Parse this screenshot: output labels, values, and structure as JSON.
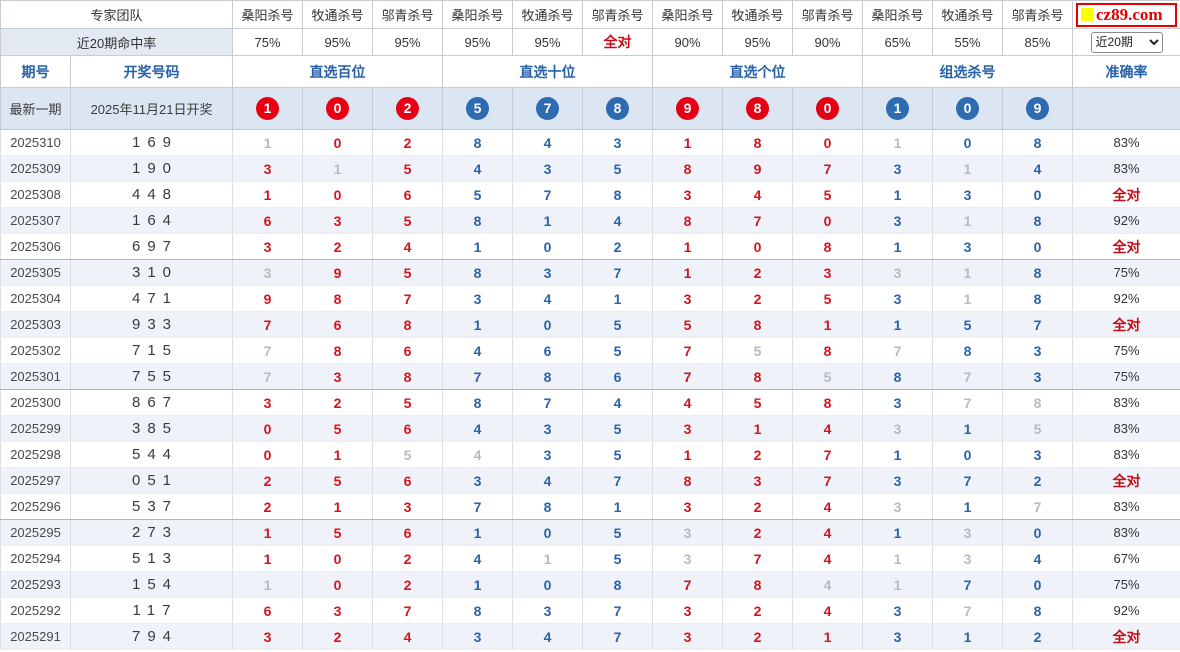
{
  "labels": {
    "all_correct": "全对"
  },
  "site": {
    "logo_text": "cz89.com"
  },
  "header": {
    "team_label": "专家团队",
    "hit_rate_label": "近20期命中率",
    "expert_columns": [
      "桑阳杀号",
      "牧通杀号",
      "邬青杀号",
      "桑阳杀号",
      "牧通杀号",
      "邬青杀号",
      "桑阳杀号",
      "牧通杀号",
      "邬青杀号",
      "桑阳杀号",
      "牧通杀号",
      "邬青杀号"
    ],
    "hit_rates": [
      "75%",
      "95%",
      "95%",
      "95%",
      "95%",
      "全对",
      "90%",
      "95%",
      "90%",
      "65%",
      "55%",
      "85%"
    ],
    "period_label": "期号",
    "draw_label": "开奖号码",
    "group_headers": [
      "直选百位",
      "直选十位",
      "直选个位",
      "组选杀号"
    ],
    "accuracy_label": "准确率",
    "range_select_value": "近20期"
  },
  "latest": {
    "label": "最新一期",
    "date_text": "2025年11月21日开奖",
    "balls": [
      {
        "v": "1",
        "c": "red"
      },
      {
        "v": "0",
        "c": "red"
      },
      {
        "v": "2",
        "c": "red"
      },
      {
        "v": "5",
        "c": "blue"
      },
      {
        "v": "7",
        "c": "blue"
      },
      {
        "v": "8",
        "c": "blue"
      },
      {
        "v": "9",
        "c": "red"
      },
      {
        "v": "8",
        "c": "red"
      },
      {
        "v": "0",
        "c": "red"
      },
      {
        "v": "1",
        "c": "blue"
      },
      {
        "v": "0",
        "c": "blue"
      },
      {
        "v": "9",
        "c": "blue"
      }
    ]
  },
  "rows": [
    {
      "period": "2025310",
      "draw": "169",
      "kills": [
        "1g",
        "0r",
        "2r",
        "8b",
        "4b",
        "3b",
        "1r",
        "8r",
        "0r",
        "1g",
        "0b",
        "8b"
      ],
      "accuracy": "83%"
    },
    {
      "period": "2025309",
      "draw": "190",
      "kills": [
        "3r",
        "1g",
        "5r",
        "4b",
        "3b",
        "5b",
        "8r",
        "9r",
        "7r",
        "3b",
        "1g",
        "4b"
      ],
      "accuracy": "83%"
    },
    {
      "period": "2025308",
      "draw": "448",
      "kills": [
        "1r",
        "0r",
        "6r",
        "5b",
        "7b",
        "8b",
        "3r",
        "4r",
        "5r",
        "1b",
        "3b",
        "0b"
      ],
      "accuracy": "全对"
    },
    {
      "period": "2025307",
      "draw": "164",
      "kills": [
        "6r",
        "3r",
        "5r",
        "8b",
        "1b",
        "4b",
        "8r",
        "7r",
        "0r",
        "3b",
        "1g",
        "8b"
      ],
      "accuracy": "92%"
    },
    {
      "period": "2025306",
      "draw": "697",
      "kills": [
        "3r",
        "2r",
        "4r",
        "1b",
        "0b",
        "2b",
        "1r",
        "0r",
        "8r",
        "1b",
        "3b",
        "0b"
      ],
      "accuracy": "全对"
    },
    {
      "period": "2025305",
      "draw": "310",
      "kills": [
        "3g",
        "9r",
        "5r",
        "8b",
        "3b",
        "7b",
        "1r",
        "2r",
        "3r",
        "3g",
        "1g",
        "8b"
      ],
      "accuracy": "75%"
    },
    {
      "period": "2025304",
      "draw": "471",
      "kills": [
        "9r",
        "8r",
        "7r",
        "3b",
        "4b",
        "1b",
        "3r",
        "2r",
        "5r",
        "3b",
        "1g",
        "8b"
      ],
      "accuracy": "92%"
    },
    {
      "period": "2025303",
      "draw": "933",
      "kills": [
        "7r",
        "6r",
        "8r",
        "1b",
        "0b",
        "5b",
        "5r",
        "8r",
        "1r",
        "1b",
        "5b",
        "7b"
      ],
      "accuracy": "全对"
    },
    {
      "period": "2025302",
      "draw": "715",
      "kills": [
        "7g",
        "8r",
        "6r",
        "4b",
        "6b",
        "5b",
        "7r",
        "5g",
        "8r",
        "7g",
        "8b",
        "3b"
      ],
      "accuracy": "75%"
    },
    {
      "period": "2025301",
      "draw": "755",
      "kills": [
        "7g",
        "3r",
        "8r",
        "7b",
        "8b",
        "6b",
        "7r",
        "8r",
        "5g",
        "8b",
        "7g",
        "3b"
      ],
      "accuracy": "75%"
    },
    {
      "period": "2025300",
      "draw": "867",
      "kills": [
        "3r",
        "2r",
        "5r",
        "8b",
        "7b",
        "4b",
        "4r",
        "5r",
        "8r",
        "3b",
        "7g",
        "8g"
      ],
      "accuracy": "83%"
    },
    {
      "period": "2025299",
      "draw": "385",
      "kills": [
        "0r",
        "5r",
        "6r",
        "4b",
        "3b",
        "5b",
        "3r",
        "1r",
        "4r",
        "3g",
        "1b",
        "5g"
      ],
      "accuracy": "83%"
    },
    {
      "period": "2025298",
      "draw": "544",
      "kills": [
        "0r",
        "1r",
        "5g",
        "4g",
        "3b",
        "5b",
        "1r",
        "2r",
        "7r",
        "1b",
        "0b",
        "3b"
      ],
      "accuracy": "83%"
    },
    {
      "period": "2025297",
      "draw": "051",
      "kills": [
        "2r",
        "5r",
        "6r",
        "3b",
        "4b",
        "7b",
        "8r",
        "3r",
        "7r",
        "3b",
        "7b",
        "2b"
      ],
      "accuracy": "全对"
    },
    {
      "period": "2025296",
      "draw": "537",
      "kills": [
        "2r",
        "1r",
        "3r",
        "7b",
        "8b",
        "1b",
        "3r",
        "2r",
        "4r",
        "3g",
        "1b",
        "7g"
      ],
      "accuracy": "83%"
    },
    {
      "period": "2025295",
      "draw": "273",
      "kills": [
        "1r",
        "5r",
        "6r",
        "1b",
        "0b",
        "5b",
        "3g",
        "2r",
        "4r",
        "1b",
        "3g",
        "0b"
      ],
      "accuracy": "83%"
    },
    {
      "period": "2025294",
      "draw": "513",
      "kills": [
        "1r",
        "0r",
        "2r",
        "4b",
        "1g",
        "5b",
        "3g",
        "7r",
        "4r",
        "1g",
        "3g",
        "4b"
      ],
      "accuracy": "67%"
    },
    {
      "period": "2025293",
      "draw": "154",
      "kills": [
        "1g",
        "0r",
        "2r",
        "1b",
        "0b",
        "8b",
        "7r",
        "8r",
        "4g",
        "1g",
        "7b",
        "0b"
      ],
      "accuracy": "75%"
    },
    {
      "period": "2025292",
      "draw": "117",
      "kills": [
        "6r",
        "3r",
        "7r",
        "8b",
        "3b",
        "7b",
        "3r",
        "2r",
        "4r",
        "3b",
        "7g",
        "8b"
      ],
      "accuracy": "92%"
    },
    {
      "period": "2025291",
      "draw": "794",
      "kills": [
        "3r",
        "2r",
        "4r",
        "3b",
        "4b",
        "7b",
        "3r",
        "2r",
        "1r",
        "3b",
        "1b",
        "2b"
      ],
      "accuracy": "全对"
    }
  ]
}
